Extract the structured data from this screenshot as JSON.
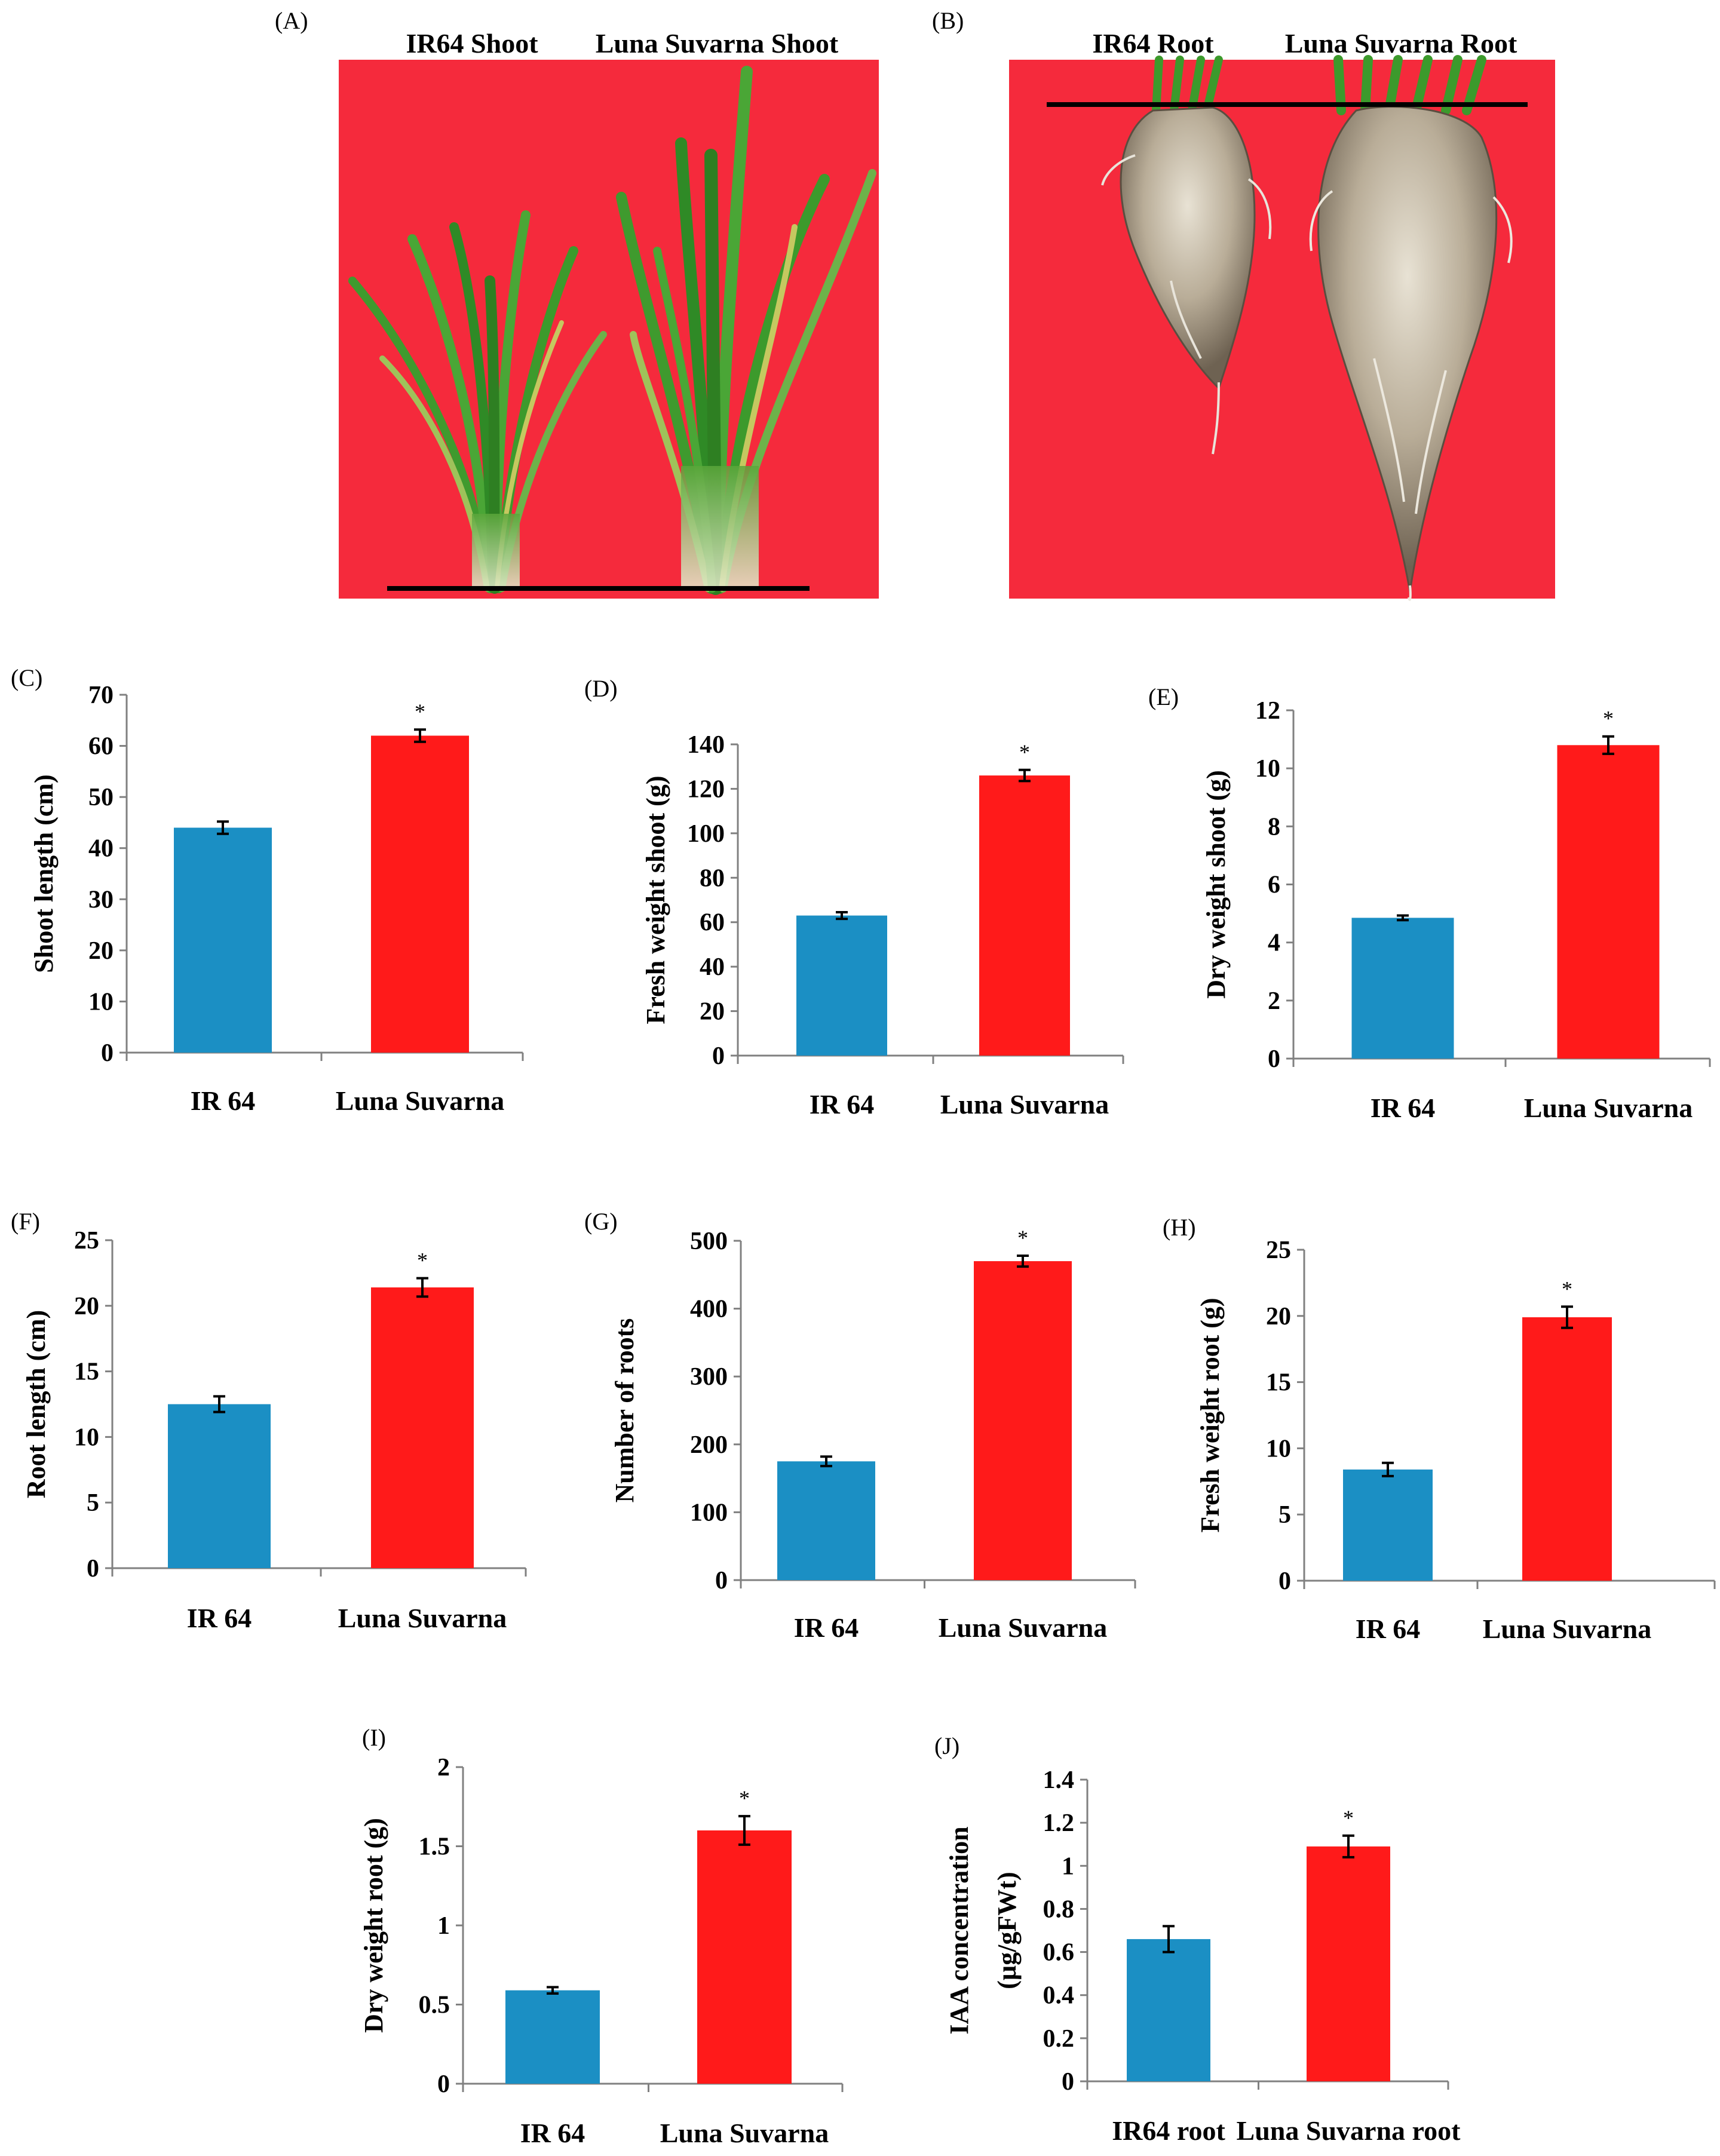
{
  "photos": [
    {
      "label": "(A)",
      "titles": [
        "IR64 Shoot",
        "Luna Suvarna Shoot"
      ]
    },
    {
      "label": "(B)",
      "titles": [
        "IR64 Root",
        "Luna Suvarna Root"
      ]
    }
  ],
  "colors": {
    "ir64": "#1b8fc4",
    "luna": "#ff1a1a",
    "photo_bg": "#f5253d",
    "leaf": "#3c9a2c"
  },
  "chart_data": [
    {
      "type": "bar",
      "panel": "(C)",
      "categories": [
        "IR 64",
        "Luna Suvarna"
      ],
      "values": [
        44,
        62
      ],
      "errors": [
        1.2,
        1.2
      ],
      "ylabel": "Shoot length (cm)",
      "ylim": [
        0,
        70
      ],
      "yticks": [
        "0",
        "10",
        "20",
        "30",
        "40",
        "50",
        "60",
        "70"
      ],
      "annotations": [
        "",
        "*"
      ]
    },
    {
      "type": "bar",
      "panel": "(D)",
      "categories": [
        "IR 64",
        "Luna Suvarna"
      ],
      "values": [
        63,
        126
      ],
      "errors": [
        1.5,
        2.5
      ],
      "ylabel": "Fresh weight shoot (g)",
      "ylim": [
        0,
        140
      ],
      "yticks": [
        "0",
        "20",
        "40",
        "60",
        "80",
        "100",
        "120",
        "140"
      ],
      "annotations": [
        "",
        "*"
      ]
    },
    {
      "type": "bar",
      "panel": "(E)",
      "categories": [
        "IR 64",
        "Luna Suvarna"
      ],
      "values": [
        4.85,
        10.8
      ],
      "errors": [
        0.08,
        0.3
      ],
      "ylabel": "Dry weight shoot (g)",
      "ylim": [
        0,
        12
      ],
      "yticks": [
        "0",
        "2",
        "4",
        "6",
        "8",
        "10",
        "12"
      ],
      "annotations": [
        "",
        "*"
      ]
    },
    {
      "type": "bar",
      "panel": "(F)",
      "categories": [
        "IR 64",
        "Luna Suvarna"
      ],
      "values": [
        12.5,
        21.4
      ],
      "errors": [
        0.6,
        0.7
      ],
      "ylabel": "Root length (cm)",
      "ylim": [
        0,
        25
      ],
      "yticks": [
        "0",
        "5",
        "10",
        "15",
        "20",
        "25"
      ],
      "annotations": [
        "",
        "*"
      ]
    },
    {
      "type": "bar",
      "panel": "(G)",
      "categories": [
        "IR 64",
        "Luna Suvarna"
      ],
      "values": [
        175,
        470
      ],
      "errors": [
        7,
        8
      ],
      "ylabel": "Number of roots",
      "ylim": [
        0,
        500
      ],
      "yticks": [
        "0",
        "100",
        "200",
        "300",
        "400",
        "500"
      ],
      "annotations": [
        "",
        "*"
      ]
    },
    {
      "type": "bar",
      "panel": "(H)",
      "categories": [
        "IR 64",
        "Luna Suvarna"
      ],
      "values": [
        8.4,
        19.9
      ],
      "errors": [
        0.5,
        0.8
      ],
      "ylabel": "Fresh weight root (g)",
      "ylim": [
        0,
        25
      ],
      "yticks": [
        "0",
        "5",
        "10",
        "15",
        "20",
        "25"
      ],
      "annotations": [
        "",
        "*"
      ]
    },
    {
      "type": "bar",
      "panel": "(I)",
      "categories": [
        "IR 64",
        "Luna Suvarna"
      ],
      "values": [
        0.59,
        1.6
      ],
      "errors": [
        0.02,
        0.09
      ],
      "ylabel": "Dry weight root (g)",
      "ylim": [
        0,
        2
      ],
      "yticks": [
        "0",
        "0.5",
        "1",
        "1.5",
        "2"
      ],
      "annotations": [
        "",
        "*"
      ]
    },
    {
      "type": "bar",
      "panel": "(J)",
      "categories": [
        "IR64 root",
        "Luna Suvarna root"
      ],
      "values": [
        0.66,
        1.09
      ],
      "errors": [
        0.06,
        0.05
      ],
      "ylabel": "IAA  concentration",
      "ylabel2": "(µg/gFWt)",
      "ylim": [
        0,
        1.4
      ],
      "yticks": [
        "0",
        "0.2",
        "0.4",
        "0.6",
        "0.8",
        "1",
        "1.2",
        "1.4"
      ],
      "annotations": [
        "",
        "*"
      ]
    }
  ]
}
